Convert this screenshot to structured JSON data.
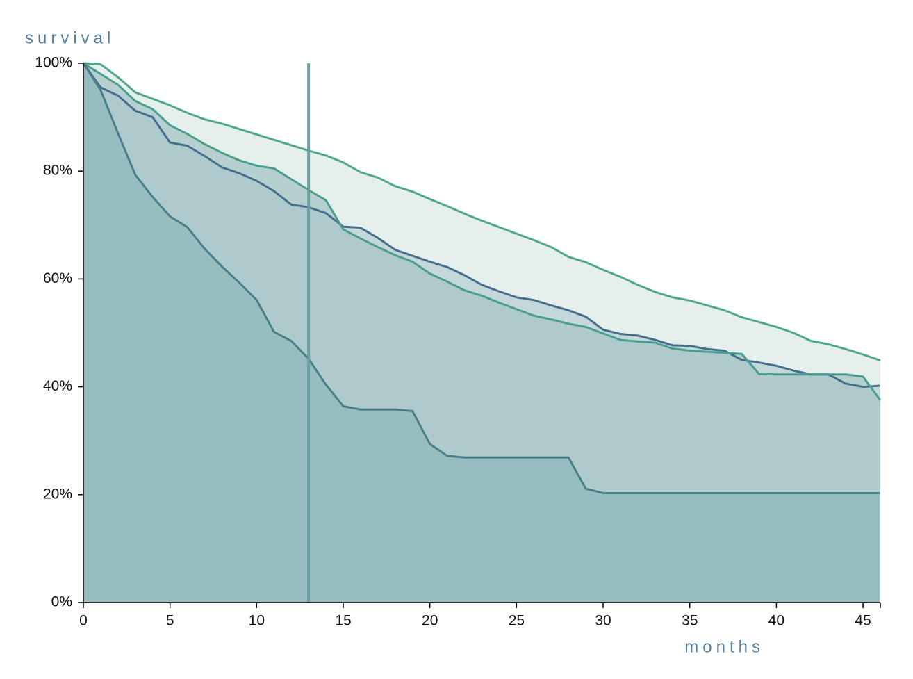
{
  "chart_data": {
    "type": "area",
    "y_label": "survival",
    "x_label": "months",
    "x": [
      0,
      1,
      2,
      3,
      4,
      5,
      6,
      7,
      8,
      9,
      10,
      11,
      12,
      13,
      14,
      15,
      16,
      17,
      18,
      19,
      20,
      21,
      22,
      23,
      24,
      25,
      26,
      27,
      28,
      29,
      30,
      31,
      32,
      33,
      34,
      35,
      36,
      37,
      38,
      39,
      40,
      41,
      42,
      43,
      44,
      45,
      46
    ],
    "xlim": [
      0,
      46
    ],
    "xticks": [
      0,
      5,
      10,
      15,
      20,
      25,
      30,
      35,
      40,
      45
    ],
    "ylim": [
      0,
      100
    ],
    "yticks": [
      {
        "value": 0,
        "label": "0%"
      },
      {
        "value": 20,
        "label": "20%"
      },
      {
        "value": 40,
        "label": "40%"
      },
      {
        "value": 60,
        "label": "60%"
      },
      {
        "value": 80,
        "label": "80%"
      },
      {
        "value": 100,
        "label": "100%"
      }
    ],
    "vline": 13,
    "vline_color": "#6a9ea0",
    "series": [
      {
        "color": "#4fa88a",
        "fill": "#dcebe5",
        "values": [
          100,
          99.8,
          97.4,
          94.6,
          93.4,
          92.2,
          90.8,
          89.6,
          88.8,
          87.8,
          86.8,
          85.8,
          84.8,
          83.8,
          82.9,
          81.6,
          79.8,
          78.8,
          77.2,
          76.2,
          74.8,
          73.5,
          72.1,
          70.8,
          69.6,
          68.4,
          67.2,
          65.9,
          64.1,
          63.1,
          61.7,
          60.4,
          58.9,
          57.6,
          56.6,
          56.0,
          55.1,
          54.2,
          52.9,
          52.0,
          51.1,
          50.0,
          48.5,
          47.9,
          47.0,
          46.0,
          44.9
        ]
      },
      {
        "color": "#466f8e",
        "fill": "#b9d0d3",
        "values": [
          100,
          95.5,
          94,
          91.2,
          90,
          85.3,
          84.7,
          82.8,
          80.7,
          79.6,
          78.2,
          76.3,
          73.8,
          73.3,
          72.2,
          69.7,
          69.5,
          67.6,
          65.4,
          64.3,
          63.2,
          62.2,
          60.7,
          58.9,
          57.7,
          56.6,
          56.1,
          55.1,
          54.2,
          53,
          50.6,
          49.8,
          49.5,
          48.7,
          47.7,
          47.6,
          47,
          46.7,
          45,
          44.5,
          43.9,
          43,
          42.3,
          42.3,
          40.6,
          40,
          40.2
        ]
      },
      {
        "color": "#4a9e90",
        "fill": "#a6c6c7",
        "values": [
          100,
          98,
          96,
          93,
          91.5,
          88.5,
          86.9,
          85,
          83.4,
          82,
          81,
          80.5,
          78.5,
          76.5,
          74.6,
          69.2,
          67.5,
          65.9,
          64.4,
          63.2,
          61,
          59.5,
          57.9,
          56.9,
          55.6,
          54.4,
          53.2,
          52.5,
          51.7,
          51.1,
          49.9,
          48.7,
          48.4,
          48.2,
          47.1,
          46.7,
          46.5,
          46.3,
          46.1,
          42.4,
          42.3,
          42.3,
          42.3,
          42.3,
          42.3,
          41.9,
          37.5
        ]
      },
      {
        "color": "#4a7f89",
        "fill": "#90b8bd",
        "values": [
          100,
          95,
          87,
          79.3,
          75.2,
          71.6,
          69.6,
          65.6,
          62.3,
          59.3,
          56.1,
          50.2,
          48.5,
          45.2,
          40.4,
          36.4,
          35.8,
          35.8,
          35.8,
          35.5,
          29.4,
          27.2,
          26.9,
          26.9,
          26.9,
          26.9,
          26.9,
          26.9,
          26.9,
          21.1,
          20.3,
          20.3,
          20.3,
          20.3,
          20.3,
          20.3,
          20.3,
          20.3,
          20.3,
          20.3,
          20.3,
          20.3,
          20.3,
          20.3,
          20.3,
          20.3,
          20.3
        ]
      }
    ]
  }
}
